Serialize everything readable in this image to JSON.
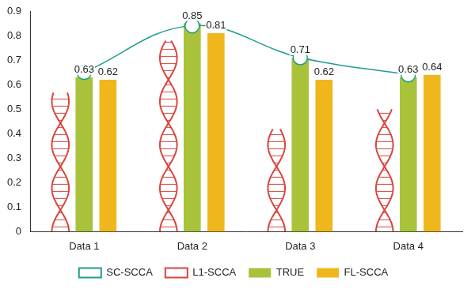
{
  "chart_data": {
    "type": "bar",
    "categories": [
      "Data 1",
      "Data 2",
      "Data 3",
      "Data 4"
    ],
    "series": [
      {
        "name": "L1-SCCA",
        "color": "#d8453e",
        "marker": "helix",
        "values": [
          0.57,
          0.78,
          0.42,
          0.5
        ]
      },
      {
        "name": "TRUE",
        "color": "#a8c23a",
        "values": [
          0.63,
          0.85,
          0.71,
          0.63
        ],
        "data_labels": true
      },
      {
        "name": "FL-SCCA",
        "color": "#f0b71c",
        "values": [
          0.62,
          0.81,
          0.62,
          0.64
        ],
        "data_labels": true
      },
      {
        "name": "SC-SCCA",
        "type": "line",
        "color": "#1e9e8c",
        "marker": "circle",
        "values": [
          0.65,
          0.84,
          0.71,
          0.64
        ]
      }
    ],
    "ylim": [
      0,
      0.9
    ],
    "yticks": [
      0,
      0.1,
      0.2,
      0.3,
      0.4,
      0.5,
      0.6,
      0.7,
      0.8,
      0.9
    ],
    "grid": false,
    "legend": "bottom"
  }
}
